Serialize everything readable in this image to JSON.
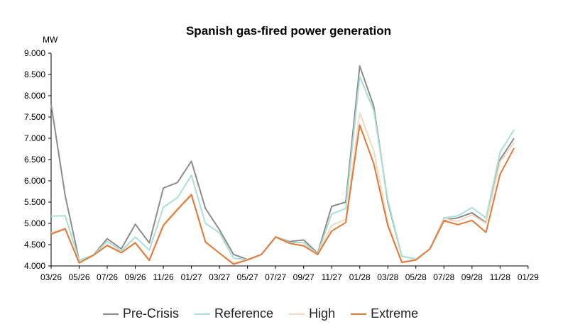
{
  "chart_data": {
    "type": "line",
    "title": "Spanish gas-fired power generation",
    "ylabel": "MW",
    "ylim": [
      4000,
      9000
    ],
    "yticks": [
      "4.000",
      "4.500",
      "5.000",
      "5.500",
      "6.000",
      "6.500",
      "7.000",
      "7.500",
      "8.000",
      "8.500",
      "9.000"
    ],
    "xticks": [
      "03/26",
      "05/26",
      "07/26",
      "09/26",
      "11/26",
      "01/27",
      "03/27",
      "05/27",
      "07/27",
      "09/27",
      "11/27",
      "01/28",
      "03/28",
      "05/28",
      "07/28",
      "09/28",
      "11/28",
      "01/29"
    ],
    "x": [
      "03/26",
      "04/26",
      "05/26",
      "06/26",
      "07/26",
      "08/26",
      "09/26",
      "10/26",
      "11/26",
      "12/26",
      "01/27",
      "02/27",
      "03/27",
      "04/27",
      "05/27",
      "06/27",
      "07/27",
      "08/27",
      "09/27",
      "10/27",
      "11/27",
      "12/27",
      "01/28",
      "02/28",
      "03/28",
      "04/28",
      "05/28",
      "06/28",
      "07/28",
      "08/28",
      "09/28",
      "10/28",
      "11/28",
      "12/28"
    ],
    "legend_position": "bottom",
    "grid": false,
    "series": [
      {
        "name": "Pre-Crisis",
        "color": "#8c8c8c",
        "values": [
          7800,
          5650,
          4130,
          4250,
          4640,
          4400,
          4980,
          4540,
          5830,
          5960,
          6460,
          5350,
          4850,
          4270,
          4150,
          4270,
          4680,
          4570,
          4610,
          4300,
          5400,
          5500,
          8700,
          7750,
          5500,
          4230,
          4160,
          4400,
          5080,
          5130,
          5250,
          5020,
          6500,
          7000
        ]
      },
      {
        "name": "Reference",
        "color": "#a8e0d6",
        "values": [
          5170,
          5180,
          4130,
          4250,
          4580,
          4350,
          4680,
          4370,
          5380,
          5600,
          6130,
          5000,
          4780,
          4180,
          4150,
          4270,
          4680,
          4550,
          4550,
          4280,
          5220,
          5350,
          8450,
          7650,
          5550,
          4230,
          4160,
          4400,
          5130,
          5180,
          5370,
          5130,
          6670,
          7200
        ]
      },
      {
        "name": "High",
        "color": "#f3d9bf",
        "values": [
          4780,
          4880,
          4080,
          4250,
          4500,
          4320,
          4560,
          4150,
          4980,
          5350,
          5700,
          4580,
          4300,
          4070,
          4150,
          4270,
          4680,
          4530,
          4490,
          4280,
          4950,
          5100,
          7600,
          6700,
          5000,
          4100,
          4150,
          4400,
          5100,
          5050,
          5200,
          5000,
          6450,
          6900
        ]
      },
      {
        "name": "Extreme",
        "color": "#e07a3a",
        "values": [
          4750,
          4870,
          4070,
          4250,
          4480,
          4310,
          4540,
          4130,
          4950,
          5320,
          5670,
          4560,
          4300,
          4040,
          4140,
          4270,
          4680,
          4530,
          4470,
          4270,
          4820,
          5020,
          7310,
          6400,
          4950,
          4080,
          4140,
          4400,
          5060,
          4970,
          5070,
          4790,
          6150,
          6770
        ]
      }
    ]
  }
}
